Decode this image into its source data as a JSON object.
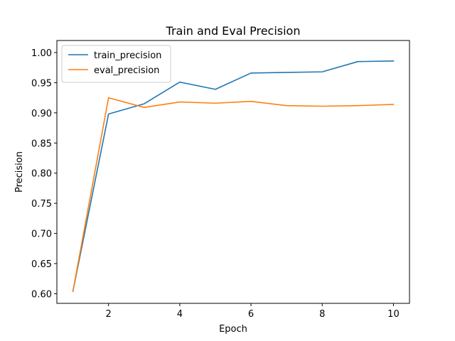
{
  "chart_data": {
    "type": "line",
    "title": "Train and Eval Precision",
    "xlabel": "Epoch",
    "ylabel": "Precision",
    "xlim": [
      0.55,
      10.45
    ],
    "ylim": [
      0.584,
      1.02
    ],
    "xticks": [
      2,
      4,
      6,
      8,
      10
    ],
    "yticks": [
      0.6,
      0.65,
      0.7,
      0.75,
      0.8,
      0.85,
      0.9,
      0.95,
      1.0
    ],
    "ytick_labels": [
      "0.60",
      "0.65",
      "0.70",
      "0.75",
      "0.80",
      "0.85",
      "0.90",
      "0.95",
      "1.00"
    ],
    "grid": false,
    "legend": "top-left",
    "x": [
      1,
      2,
      3,
      4,
      5,
      6,
      7,
      8,
      9,
      10
    ],
    "series": [
      {
        "name": "train_precision",
        "color": "#1f77b4",
        "values": [
          0.604,
          0.898,
          0.915,
          0.951,
          0.939,
          0.966,
          0.967,
          0.968,
          0.985,
          0.986
        ]
      },
      {
        "name": "eval_precision",
        "color": "#ff7f0e",
        "values": [
          0.604,
          0.925,
          0.909,
          0.918,
          0.916,
          0.919,
          0.912,
          0.911,
          0.912,
          0.914
        ]
      }
    ]
  }
}
